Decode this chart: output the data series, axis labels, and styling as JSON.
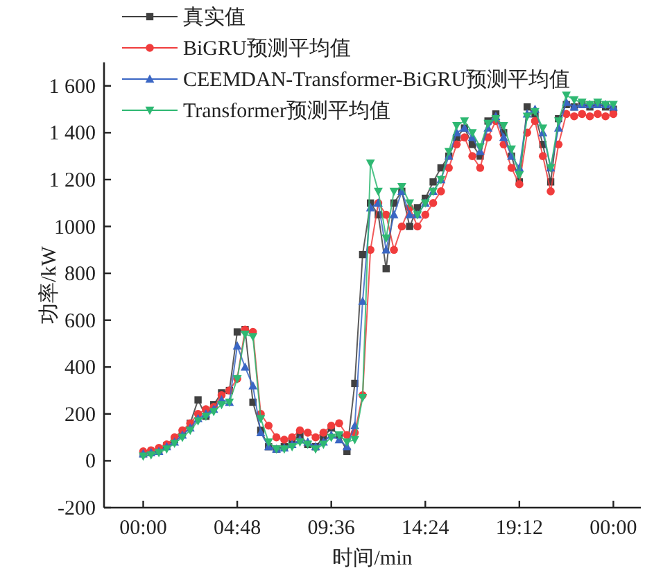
{
  "chart_data": {
    "type": "line",
    "xlabel": "时间/min",
    "ylabel": "功率/kW",
    "legend": "top left",
    "grid": false,
    "xlim": [
      -2,
      25.4
    ],
    "ylim": [
      -200,
      1700
    ],
    "xticks": [
      {
        "value": 0,
        "label": "00:00"
      },
      {
        "value": 4.8,
        "label": "04:48"
      },
      {
        "value": 9.6,
        "label": "09:36"
      },
      {
        "value": 14.4,
        "label": "14:24"
      },
      {
        "value": 19.2,
        "label": "19:12"
      },
      {
        "value": 24,
        "label": "00:00"
      }
    ],
    "yticks": [
      -200,
      0,
      200,
      400,
      600,
      800,
      1000,
      {
        "value": 1200,
        "label": "1 200"
      },
      {
        "value": 1400,
        "label": "1 400"
      },
      {
        "value": 1600,
        "label": "1 600"
      }
    ],
    "x": [
      0,
      0.4,
      0.8,
      1.2,
      1.6,
      2.0,
      2.4,
      2.8,
      3.2,
      3.6,
      4.0,
      4.4,
      4.8,
      5.2,
      5.6,
      6.0,
      6.4,
      6.8,
      7.2,
      7.6,
      8.0,
      8.4,
      8.8,
      9.2,
      9.6,
      10.0,
      10.4,
      10.8,
      11.2,
      11.6,
      12.0,
      12.4,
      12.8,
      13.2,
      13.6,
      14.0,
      14.4,
      14.8,
      15.2,
      15.6,
      16.0,
      16.4,
      16.8,
      17.2,
      17.6,
      18.0,
      18.4,
      18.8,
      19.2,
      19.6,
      20.0,
      20.4,
      20.8,
      21.2,
      21.6,
      22.0,
      22.4,
      22.8,
      23.2,
      23.6,
      24.0
    ],
    "series": [
      {
        "name": "真实值",
        "color": "#404040",
        "marker": "square",
        "values": [
          30,
          35,
          45,
          65,
          90,
          120,
          160,
          260,
          190,
          240,
          290,
          300,
          550,
          560,
          250,
          130,
          60,
          50,
          60,
          80,
          110,
          70,
          60,
          100,
          140,
          110,
          40,
          330,
          880,
          1100,
          1050,
          820,
          1100,
          1150,
          1000,
          1080,
          1120,
          1190,
          1250,
          1300,
          1380,
          1420,
          1350,
          1300,
          1450,
          1480,
          1400,
          1300,
          1190,
          1510,
          1480,
          1350,
          1190,
          1460,
          1520,
          1510,
          1520,
          1510,
          1520,
          1510,
          1500
        ]
      },
      {
        "name": "BiGRU预测平均值",
        "color": "#f03c3c",
        "marker": "circle",
        "values": [
          40,
          45,
          55,
          70,
          100,
          130,
          160,
          200,
          220,
          230,
          280,
          300,
          350,
          560,
          550,
          200,
          150,
          100,
          90,
          100,
          130,
          120,
          100,
          120,
          150,
          160,
          110,
          120,
          280,
          900,
          1100,
          1050,
          900,
          1000,
          1080,
          1000,
          1050,
          1100,
          1150,
          1250,
          1350,
          1380,
          1300,
          1250,
          1380,
          1450,
          1350,
          1250,
          1180,
          1400,
          1450,
          1300,
          1150,
          1350,
          1480,
          1470,
          1480,
          1470,
          1480,
          1470,
          1480
        ]
      },
      {
        "name": "CEEMDAN-Transformer-BiGRU预测平均值",
        "color": "#3a66c4",
        "marker": "triangle",
        "values": [
          30,
          35,
          40,
          60,
          80,
          110,
          140,
          180,
          200,
          220,
          260,
          250,
          490,
          400,
          320,
          120,
          60,
          50,
          55,
          70,
          90,
          80,
          60,
          80,
          110,
          90,
          60,
          150,
          680,
          1080,
          1100,
          900,
          1050,
          1150,
          1050,
          1050,
          1100,
          1150,
          1200,
          1300,
          1400,
          1420,
          1380,
          1320,
          1420,
          1470,
          1380,
          1300,
          1250,
          1480,
          1500,
          1400,
          1250,
          1420,
          1530,
          1510,
          1520,
          1520,
          1520,
          1520,
          1510
        ]
      },
      {
        "name": "Transformer预测平均值",
        "color": "#2eb872",
        "marker": "triangle-down",
        "values": [
          20,
          25,
          35,
          50,
          75,
          100,
          130,
          170,
          190,
          210,
          240,
          250,
          350,
          540,
          530,
          180,
          80,
          50,
          50,
          60,
          80,
          70,
          50,
          70,
          100,
          110,
          80,
          90,
          270,
          1270,
          1150,
          950,
          1150,
          1170,
          1100,
          1050,
          1100,
          1150,
          1200,
          1320,
          1430,
          1450,
          1400,
          1340,
          1440,
          1460,
          1430,
          1330,
          1220,
          1470,
          1490,
          1420,
          1250,
          1450,
          1560,
          1540,
          1530,
          1520,
          1530,
          1520,
          1520
        ]
      }
    ]
  }
}
